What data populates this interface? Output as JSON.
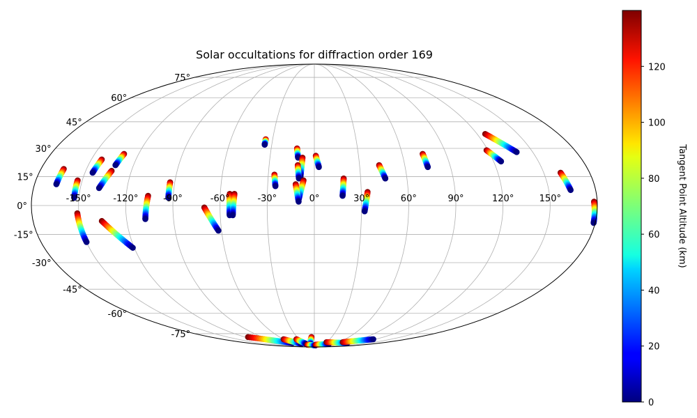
{
  "chart_data": {
    "type": "scatter",
    "projection": "mollweide",
    "title": "Solar occultations for diffraction order 169",
    "grid": true,
    "colormap": "jet",
    "longitude_tick_labels": [
      "-150°",
      "-120°",
      "-90°",
      "-60°",
      "-30°",
      "0°",
      "30°",
      "60°",
      "90°",
      "120°",
      "150°"
    ],
    "latitude_tick_labels": [
      "-75°",
      "-60°",
      "-45°",
      "-30°",
      "-15°",
      "0°",
      "15°",
      "30°",
      "45°",
      "60°",
      "75°"
    ],
    "colorbar": {
      "label": "Tangent Point Altitude (km)",
      "range": [
        0,
        140
      ],
      "ticks": [
        "0",
        "20",
        "40",
        "60",
        "80",
        "100",
        "120"
      ]
    },
    "occultations": [
      {
        "start": [
          -165,
          19
        ],
        "end": [
          -166,
          11
        ]
      },
      {
        "start": [
          -153,
          13
        ],
        "end": [
          -153,
          4
        ]
      },
      {
        "start": [
          -143,
          24
        ],
        "end": [
          -145,
          17
        ]
      },
      {
        "start": [
          -130,
          27
        ],
        "end": [
          -132,
          21
        ]
      },
      {
        "start": [
          -133,
          18
        ],
        "end": [
          -138,
          9
        ]
      },
      {
        "start": [
          -151,
          -4
        ],
        "end": [
          -150,
          -19
        ]
      },
      {
        "start": [
          -136,
          -8
        ],
        "end": [
          -121,
          -22
        ]
      },
      {
        "start": [
          -106,
          5
        ],
        "end": [
          -108,
          -7
        ]
      },
      {
        "start": [
          -93,
          12
        ],
        "end": [
          -93,
          4
        ]
      },
      {
        "start": [
          -70,
          -1
        ],
        "end": [
          -62,
          -13
        ]
      },
      {
        "start": [
          -54,
          6
        ],
        "end": [
          -54,
          -5
        ]
      },
      {
        "start": [
          -51,
          6
        ],
        "end": [
          -52,
          -5
        ]
      },
      {
        "start": [
          -35,
          35
        ],
        "end": [
          -35,
          32
        ]
      },
      {
        "start": [
          -26,
          16
        ],
        "end": [
          -25,
          10
        ]
      },
      {
        "start": [
          -12,
          30
        ],
        "end": [
          -11,
          25
        ]
      },
      {
        "start": [
          -8,
          25
        ],
        "end": [
          -9,
          15
        ]
      },
      {
        "start": [
          -11,
          21
        ],
        "end": [
          -10,
          14
        ]
      },
      {
        "start": [
          -7,
          13
        ],
        "end": [
          -10,
          3
        ]
      },
      {
        "start": [
          -12,
          11
        ],
        "end": [
          -10,
          2
        ]
      },
      {
        "start": [
          1,
          26
        ],
        "end": [
          3,
          20
        ]
      },
      {
        "start": [
          19,
          14
        ],
        "end": [
          18,
          5
        ]
      },
      {
        "start": [
          34,
          7
        ],
        "end": [
          32,
          -3
        ]
      },
      {
        "start": [
          43,
          21
        ],
        "end": [
          46,
          14
        ]
      },
      {
        "start": [
          74,
          27
        ],
        "end": [
          75,
          20
        ]
      },
      {
        "start": [
          126,
          38
        ],
        "end": [
          139,
          28
        ]
      },
      {
        "start": [
          119,
          29
        ],
        "end": [
          125,
          23
        ]
      },
      {
        "start": [
          161,
          17
        ],
        "end": [
          164,
          8
        ]
      },
      {
        "start": [
          178,
          2
        ],
        "end": [
          179,
          -9
        ]
      },
      {
        "start": [
          -115,
          -78
        ],
        "end": [
          -60,
          -84
        ]
      },
      {
        "start": [
          -60,
          -80
        ],
        "end": [
          -40,
          -85
        ]
      },
      {
        "start": [
          -35,
          -80
        ],
        "end": [
          -25,
          -85
        ]
      },
      {
        "start": [
          -5,
          -78
        ],
        "end": [
          -12,
          -86
        ]
      },
      {
        "start": [
          -25,
          -86
        ],
        "end": [
          5,
          -87
        ]
      },
      {
        "start": [
          5,
          -86
        ],
        "end": [
          45,
          -85
        ]
      },
      {
        "start": [
          30,
          -83
        ],
        "end": [
          90,
          -84
        ]
      },
      {
        "start": [
          70,
          -83
        ],
        "end": [
          115,
          -80
        ]
      }
    ]
  }
}
